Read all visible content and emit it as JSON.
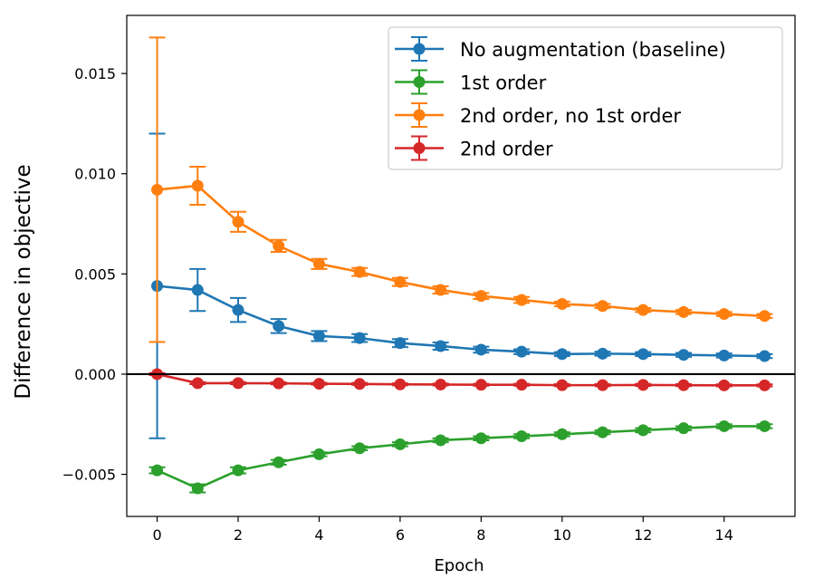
{
  "chart_data": {
    "type": "line",
    "title": "",
    "xlabel": "Epoch",
    "ylabel": "Difference in objective",
    "xlim": [
      -0.75,
      15.75
    ],
    "ylim": [
      -0.0071,
      0.0179
    ],
    "xticks": [
      0,
      2,
      4,
      6,
      8,
      10,
      12,
      14
    ],
    "xtick_labels": [
      "0",
      "2",
      "4",
      "6",
      "8",
      "10",
      "12",
      "14"
    ],
    "yticks": [
      -0.005,
      0.0,
      0.005,
      0.01,
      0.015
    ],
    "ytick_labels": [
      "−0.005",
      "0.000",
      "0.005",
      "0.010",
      "0.015"
    ],
    "reference_line_y": 0,
    "grid": false,
    "legend_position": "top-right",
    "x": [
      0,
      1,
      2,
      3,
      4,
      5,
      6,
      7,
      8,
      9,
      10,
      11,
      12,
      13,
      14,
      15
    ],
    "series": [
      {
        "name": "No augmentation (baseline)",
        "color": "#1f77b4",
        "values": [
          0.0044,
          0.0042,
          0.0032,
          0.0024,
          0.0019,
          0.0018,
          0.00155,
          0.0014,
          0.00122,
          0.00112,
          0.001,
          0.00102,
          0.001,
          0.00096,
          0.00093,
          0.0009
        ],
        "errors": [
          0.0076,
          0.00105,
          0.0006,
          0.00035,
          0.00025,
          0.0002,
          0.0002,
          0.00018,
          0.00015,
          0.00012,
          0.0001,
          0.0001,
          0.0001,
          0.0001,
          0.0001,
          0.0001
        ]
      },
      {
        "name": "1st order",
        "color": "#2ca02c",
        "values": [
          -0.0048,
          -0.0057,
          -0.0048,
          -0.0044,
          -0.004,
          -0.0037,
          -0.0035,
          -0.0033,
          -0.0032,
          -0.0031,
          -0.003,
          -0.0029,
          -0.0028,
          -0.0027,
          -0.0026,
          -0.0026
        ],
        "errors": [
          0.00015,
          0.0002,
          0.00015,
          0.00012,
          0.0001,
          0.0001,
          0.0001,
          0.0001,
          0.0001,
          0.0001,
          0.0001,
          0.0001,
          0.0001,
          0.0001,
          0.0001,
          0.0001
        ]
      },
      {
        "name": "2nd order, no 1st order",
        "color": "#ff7f0e",
        "values": [
          0.0092,
          0.0094,
          0.0076,
          0.0064,
          0.0055,
          0.0051,
          0.0046,
          0.0042,
          0.0039,
          0.0037,
          0.0035,
          0.0034,
          0.0032,
          0.0031,
          0.003,
          0.0029
        ],
        "errors": [
          0.0076,
          0.00095,
          0.0005,
          0.0003,
          0.00025,
          0.0002,
          0.0002,
          0.00018,
          0.00015,
          0.00015,
          0.00012,
          0.0001,
          0.0001,
          0.0001,
          0.0001,
          0.0001
        ]
      },
      {
        "name": "2nd order",
        "color": "#d62728",
        "values": [
          0.0,
          -0.00045,
          -0.00045,
          -0.00046,
          -0.00048,
          -0.00049,
          -0.00051,
          -0.00052,
          -0.00053,
          -0.00053,
          -0.00055,
          -0.00055,
          -0.00054,
          -0.00055,
          -0.00056,
          -0.00056
        ],
        "errors": [
          5e-05,
          5e-05,
          5e-05,
          5e-05,
          5e-05,
          5e-05,
          5e-05,
          5e-05,
          5e-05,
          5e-05,
          5e-05,
          5e-05,
          5e-05,
          5e-05,
          5e-05,
          5e-05
        ]
      }
    ]
  }
}
